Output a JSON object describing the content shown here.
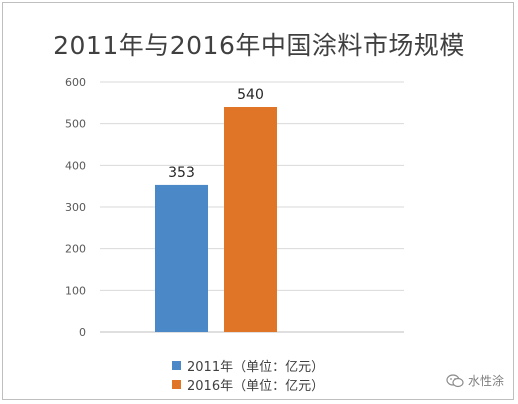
{
  "chart_data": {
    "type": "bar",
    "title": "2011年与2016年中国涂料市场规模",
    "categories": [
      ""
    ],
    "series": [
      {
        "name": "2011年（单位：亿元）",
        "values": [
          353
        ],
        "color": "#4a88c7",
        "label": "353"
      },
      {
        "name": "2016年（单位：亿元）",
        "values": [
          540
        ],
        "color": "#e07427",
        "label": "540"
      }
    ],
    "ylim": [
      0,
      600
    ],
    "yticks": [
      "0",
      "100",
      "200",
      "300",
      "400",
      "500",
      "600"
    ],
    "grid": true,
    "legend_position": "bottom"
  },
  "watermark": {
    "text": "水性涂",
    "icon": "wechat-icon"
  }
}
